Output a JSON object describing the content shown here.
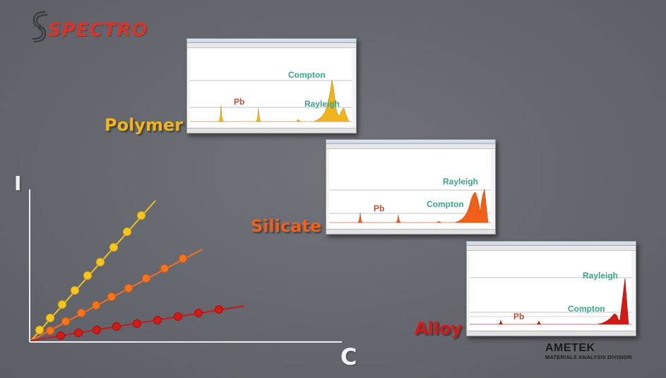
{
  "brand": {
    "name": "SPECTRO",
    "color": "#d6352c"
  },
  "footer_brand": {
    "name": "AMETEK",
    "division": "MATERIALS ANALYSIS DIVISION"
  },
  "axes": {
    "y_label": "I",
    "x_label": "C"
  },
  "materials": [
    {
      "name": "Polymer",
      "color": "#f0b41c",
      "labels": {
        "pb": "Pb",
        "compton": "Compton",
        "rayleigh": "Rayleigh"
      }
    },
    {
      "name": "Silicate",
      "color": "#f06018",
      "labels": {
        "pb": "Pb",
        "compton": "Compton",
        "rayleigh": "Rayleigh"
      }
    },
    {
      "name": "Alloy",
      "color": "#d41a14",
      "labels": {
        "pb": "Pb",
        "compton": "Compton",
        "rayleigh": "Rayleigh"
      }
    }
  ],
  "colors": {
    "polymer": "#f0b41c",
    "silicate": "#f06018",
    "alloy": "#d41a14",
    "peak_label_green": "#3aa58a",
    "pb_label": "#c0503a"
  }
}
